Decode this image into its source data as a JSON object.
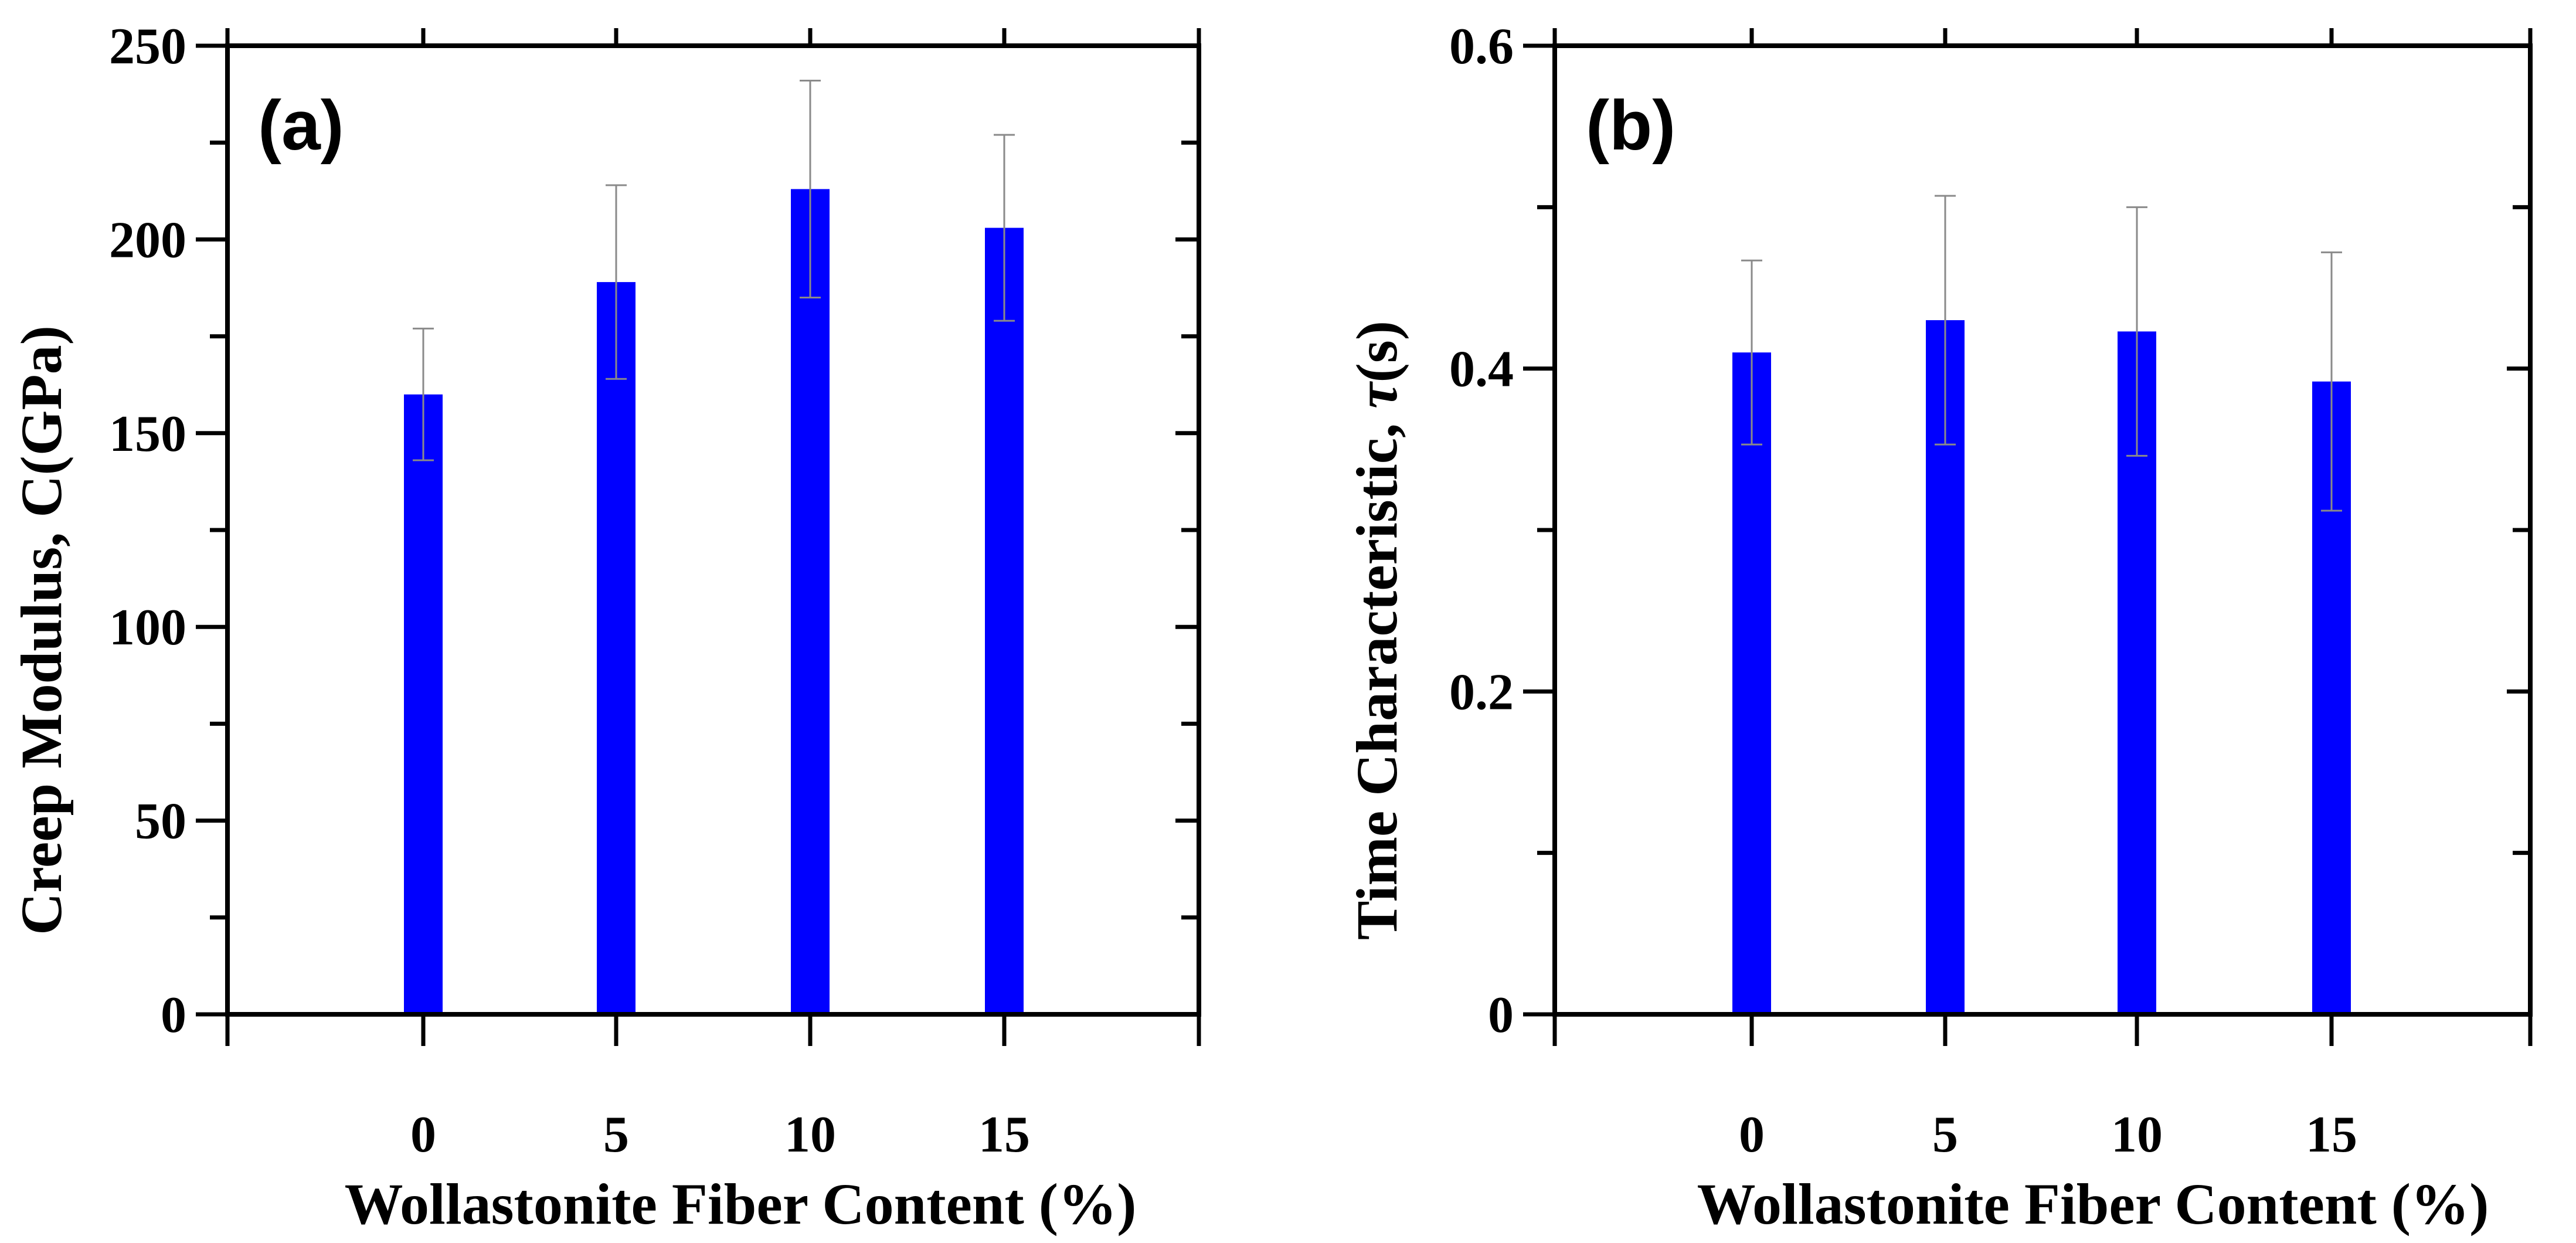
{
  "chart_data": [
    {
      "type": "bar",
      "panel_label": "(a)",
      "categories": [
        "0",
        "5",
        "10",
        "15"
      ],
      "values": [
        160,
        189,
        213,
        203
      ],
      "error_upper": [
        177,
        214,
        241,
        227
      ],
      "error_lower": [
        143,
        164,
        185,
        179
      ],
      "xlabel": "Wollastonite Fiber Content (%)",
      "ylabel": "Creep Modulus, C(GPa)",
      "ylim": [
        0,
        250
      ],
      "yticks": [
        0,
        50,
        100,
        150,
        200,
        250
      ],
      "ytick_labels": [
        "0",
        "50",
        "100",
        "150",
        "200",
        "250"
      ],
      "bar_color": "#0000ff",
      "grid": false
    },
    {
      "type": "bar",
      "panel_label": "(b)",
      "categories": [
        "0",
        "5",
        "10",
        "15"
      ],
      "values": [
        0.41,
        0.43,
        0.423,
        0.392
      ],
      "error_upper": [
        0.467,
        0.507,
        0.5,
        0.472
      ],
      "error_lower": [
        0.353,
        0.353,
        0.346,
        0.312
      ],
      "xlabel": "Wollastonite Fiber Content (%)",
      "ylabel_text": "Time Characteristic, ",
      "ylabel_symbol": "τ",
      "ylabel_unit": "(s)",
      "ylim": [
        0,
        0.6
      ],
      "yticks": [
        0,
        0.2,
        0.4,
        0.6
      ],
      "ytick_labels": [
        "0",
        "0.2",
        "0.4",
        "0.6"
      ],
      "bar_color": "#0000ff",
      "grid": false
    }
  ]
}
